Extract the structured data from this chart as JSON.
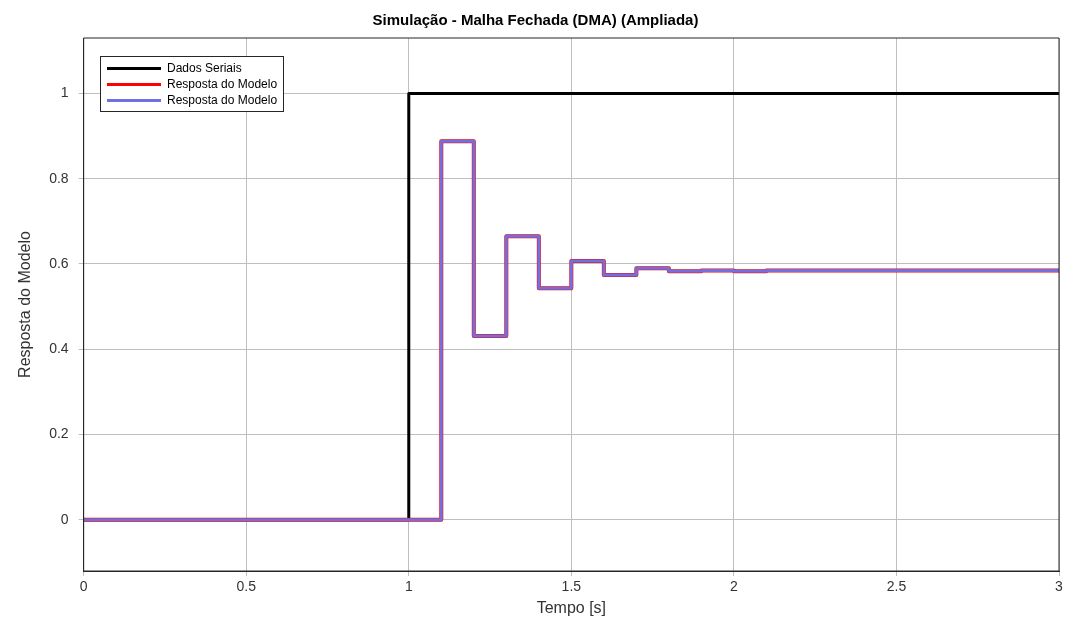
{
  "chart_data": {
    "type": "step",
    "title": "Simulação - Malha Fechada (DMA) (Ampliada)",
    "xlabel": "Tempo [s]",
    "ylabel": "Resposta do Modelo",
    "xlim": [
      0,
      3
    ],
    "xticks": [
      0,
      0.5,
      1,
      1.5,
      2,
      2.5,
      3
    ],
    "ylim": [
      -0.12,
      1.13
    ],
    "yticks": [
      0,
      0.2,
      0.4,
      0.6,
      0.8,
      1
    ],
    "grid": true,
    "legend": "top left",
    "series": [
      {
        "name": "Dados Seriais",
        "color": "#000000",
        "x": [
          0,
          1,
          3
        ],
        "values": [
          0,
          1,
          1
        ]
      },
      {
        "name": "Resposta do Modelo",
        "color": "#ff0000",
        "x": [
          0,
          1.1,
          1.2,
          1.3,
          1.4,
          1.5,
          1.6,
          1.7,
          1.8,
          1.9,
          2,
          2.1,
          3
        ],
        "values": [
          0,
          0.888,
          0.431,
          0.665,
          0.543,
          0.607,
          0.574,
          0.59,
          0.583,
          0.585,
          0.583,
          0.585,
          0.585
        ]
      },
      {
        "name": "Resposta do Modelo",
        "color": "#7070e0",
        "x": [
          0,
          1.1,
          1.2,
          1.3,
          1.4,
          1.5,
          1.6,
          1.7,
          1.8,
          1.9,
          2,
          2.1,
          3
        ],
        "values": [
          0,
          0.888,
          0.431,
          0.665,
          0.543,
          0.607,
          0.574,
          0.59,
          0.583,
          0.585,
          0.583,
          0.585,
          0.585
        ]
      }
    ]
  }
}
